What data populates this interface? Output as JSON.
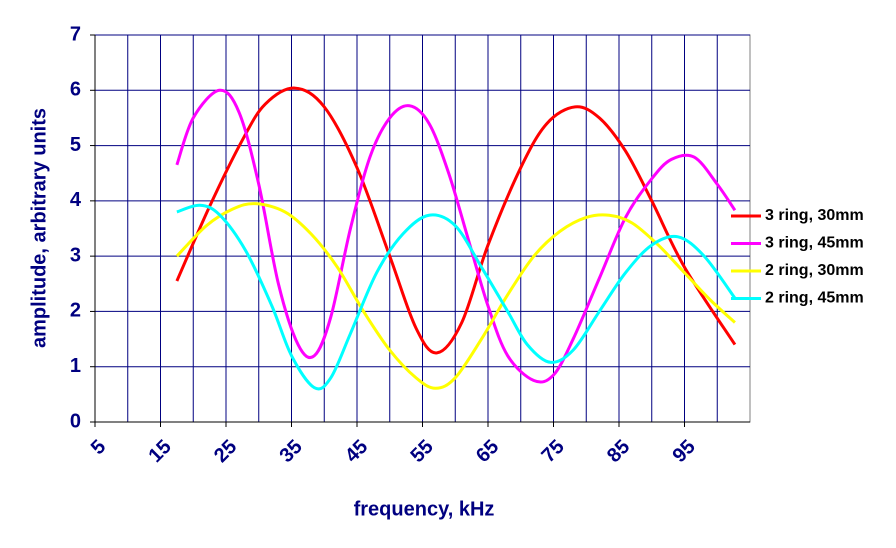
{
  "chart_data": {
    "type": "line",
    "x_label": "frequency, kHz",
    "y_label": "amplitude, arbitrary units",
    "xlim": [
      5,
      105
    ],
    "xticks": [
      5,
      15,
      25,
      35,
      45,
      55,
      65,
      75,
      85,
      95
    ],
    "ylim": [
      0,
      7
    ],
    "yticks": [
      0,
      1,
      2,
      3,
      4,
      5,
      6,
      7
    ],
    "grid": true,
    "legend": "right",
    "series": [
      {
        "name": "3 ring, 30mm",
        "color": "#ff0000",
        "x": [
          17.5,
          22.5,
          27.5,
          31,
          35.5,
          40,
          45,
          50,
          54,
          57.2,
          61,
          65,
          70,
          74,
          78.3,
          82,
          86,
          90,
          95,
          102.7
        ],
        "values": [
          2.55,
          3.9,
          5.1,
          5.75,
          6.04,
          5.7,
          4.6,
          3.0,
          1.7,
          1.25,
          1.8,
          3.2,
          4.6,
          5.4,
          5.7,
          5.5,
          4.9,
          4.0,
          2.8,
          1.4
        ]
      },
      {
        "name": "3 ring, 45mm",
        "color": "#ff00ff",
        "x": [
          17.5,
          20,
          24,
          27,
          30,
          33,
          36,
          38.5,
          41,
          44,
          47,
          50,
          53,
          56,
          59,
          62,
          65,
          68,
          72,
          75,
          78,
          82,
          86,
          90,
          93,
          96.5,
          100,
          102.7
        ],
        "values": [
          4.65,
          5.5,
          6.0,
          5.6,
          4.3,
          2.5,
          1.4,
          1.2,
          1.9,
          3.5,
          4.8,
          5.5,
          5.72,
          5.4,
          4.5,
          3.3,
          2.1,
          1.2,
          0.75,
          0.85,
          1.5,
          2.6,
          3.7,
          4.4,
          4.75,
          4.79,
          4.3,
          3.83
        ]
      },
      {
        "name": "2 ring, 30mm",
        "color": "#ffff00",
        "x": [
          17.5,
          22,
          26,
          29.5,
          34,
          38,
          42,
          46,
          50,
          54,
          57,
          60,
          64,
          68,
          72,
          76,
          80,
          83.5,
          87,
          91,
          95,
          99,
          102.7
        ],
        "values": [
          3.0,
          3.55,
          3.85,
          3.95,
          3.8,
          3.4,
          2.8,
          2.0,
          1.3,
          0.8,
          0.61,
          0.8,
          1.5,
          2.3,
          3.0,
          3.45,
          3.7,
          3.74,
          3.6,
          3.2,
          2.7,
          2.2,
          1.8
        ]
      },
      {
        "name": "2 ring, 45mm",
        "color": "#00ffff",
        "x": [
          17.5,
          21,
          24,
          28,
          32,
          35,
          38.5,
          41,
          44,
          48,
          52,
          56,
          60,
          64,
          68,
          71,
          74.5,
          78,
          82,
          86,
          90,
          94,
          98,
          102.7
        ],
        "values": [
          3.8,
          3.92,
          3.75,
          3.1,
          2.1,
          1.2,
          0.62,
          0.8,
          1.6,
          2.7,
          3.4,
          3.74,
          3.55,
          2.8,
          2.0,
          1.4,
          1.08,
          1.3,
          2.0,
          2.7,
          3.2,
          3.35,
          3.0,
          2.24
        ]
      }
    ]
  }
}
